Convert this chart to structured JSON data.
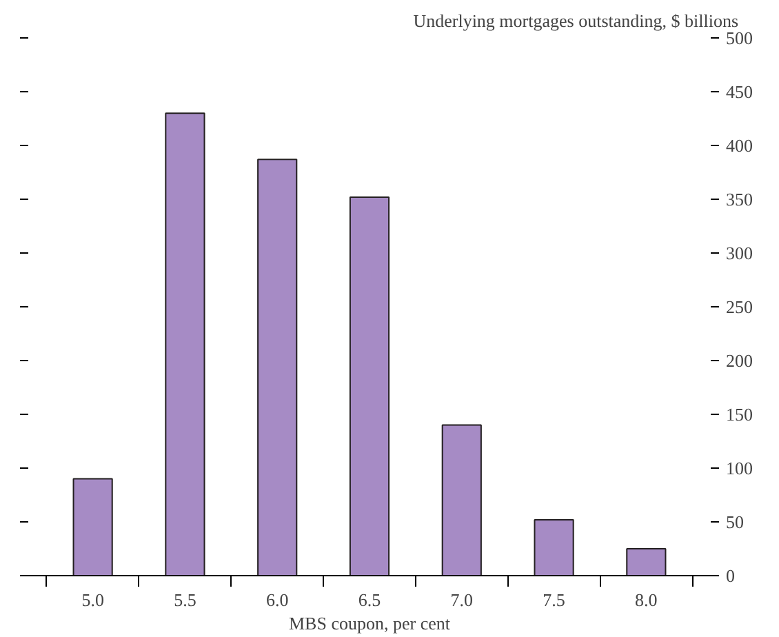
{
  "chart_data": {
    "type": "bar",
    "xlabel": "MBS coupon, per cent",
    "ylabel": "Underlying mortgages outstanding, $ billions",
    "categories": [
      "5.0",
      "5.5",
      "6.0",
      "6.5",
      "7.0",
      "7.5",
      "8.0"
    ],
    "values": [
      90,
      430,
      387,
      352,
      140,
      52,
      25
    ],
    "color": "#a68bc5",
    "ylim": [
      0,
      500
    ],
    "yticks": [
      0,
      50,
      100,
      150,
      200,
      250,
      300,
      350,
      400,
      450,
      500
    ],
    "grid": false
  }
}
